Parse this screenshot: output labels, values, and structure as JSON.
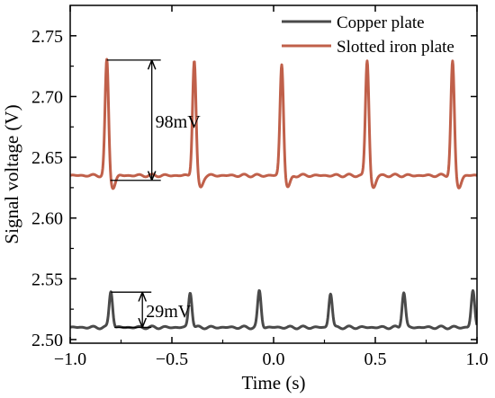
{
  "chart_data": {
    "type": "line",
    "title": "",
    "xlabel": "Time (s)",
    "ylabel": "Signal voltage (V)",
    "xlim": [
      -1.0,
      1.0
    ],
    "ylim": [
      2.497,
      2.775
    ],
    "xticks": [
      -1.0,
      -0.5,
      0.0,
      0.5,
      1.0
    ],
    "xtick_labels": [
      "−1.0",
      "−0.5",
      "0.0",
      "0.5",
      "1.0"
    ],
    "yticks": [
      2.5,
      2.55,
      2.6,
      2.65,
      2.7,
      2.75
    ],
    "ytick_labels": [
      "2.50",
      "2.55",
      "2.60",
      "2.65",
      "2.70",
      "2.75"
    ],
    "grid": false,
    "legend_position": "top-right",
    "series": [
      {
        "name": "Copper plate",
        "color": "#4a4a4a",
        "baseline": 2.51,
        "peak_times": [
          -0.8,
          -0.41,
          -0.07,
          0.28,
          0.64,
          0.98
        ],
        "peak_values": [
          2.54,
          2.539,
          2.54,
          2.538,
          2.539,
          2.54
        ],
        "dip_depth": 0.0
      },
      {
        "name": "Slotted iron plate",
        "color": "#c0604a",
        "baseline": 2.635,
        "peak_times": [
          -0.82,
          -0.39,
          0.04,
          0.46,
          0.88
        ],
        "peak_values": [
          2.73,
          2.73,
          2.727,
          2.73,
          2.729
        ],
        "dip_depth": 0.01
      }
    ],
    "annotations": [
      {
        "text": "98mV",
        "series": "Slotted iron plate",
        "x": -0.82,
        "y_from": 2.631,
        "y_to": 2.73
      },
      {
        "text": "29mV",
        "series": "Copper plate",
        "x": -0.8,
        "y_from": 2.51,
        "y_to": 2.539
      }
    ]
  }
}
